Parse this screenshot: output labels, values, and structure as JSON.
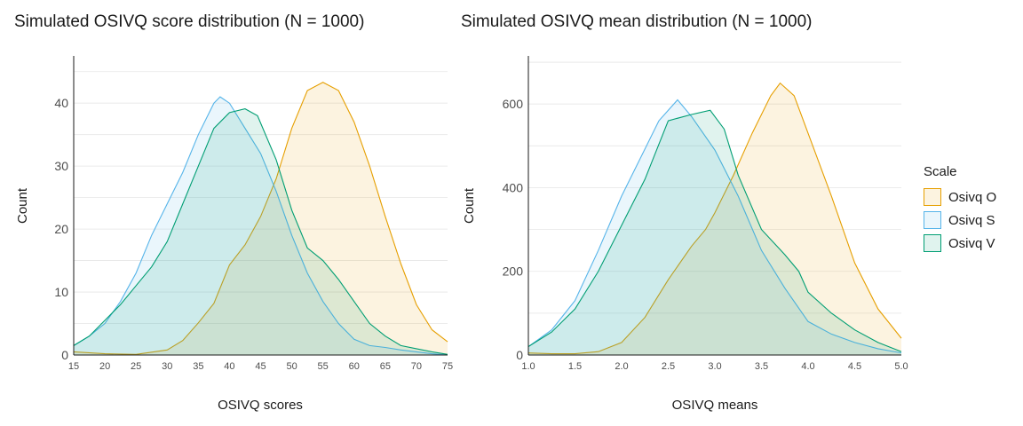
{
  "legend": {
    "title": "Scale",
    "items": [
      {
        "label": "Osivq O",
        "color": "#E69F00"
      },
      {
        "label": "Osivq S",
        "color": "#56B4E9"
      },
      {
        "label": "Osivq V",
        "color": "#009E73"
      }
    ]
  },
  "chart_data": [
    {
      "type": "area",
      "title": "Simulated OSIVQ score distribution (N = 1000)",
      "xlabel": "OSIVQ scores",
      "ylabel": "Count",
      "xlim": [
        15,
        75
      ],
      "ylim": [
        0,
        47.5
      ],
      "xticks": [
        15,
        20,
        25,
        30,
        35,
        40,
        45,
        50,
        55,
        60,
        65,
        70,
        75
      ],
      "yticks": [
        0,
        10,
        20,
        30,
        40
      ],
      "grid": true,
      "legend_position": "right",
      "series": [
        {
          "name": "Osivq O",
          "color": "#E69F00",
          "x": [
            15,
            20,
            25,
            30,
            32.5,
            35,
            37.5,
            40,
            42.5,
            45,
            47.5,
            50,
            52.5,
            55,
            57.5,
            60,
            62.5,
            65,
            67.5,
            70,
            72.5,
            75
          ],
          "y": [
            0.5,
            0.2,
            0.1,
            0.8,
            2.3,
            5.1,
            8.2,
            14.3,
            17.5,
            22.0,
            28.0,
            36.0,
            42.0,
            43.3,
            42.0,
            37.0,
            30.0,
            22.0,
            14.5,
            8.0,
            4.0,
            2.1
          ]
        },
        {
          "name": "Osivq S",
          "color": "#56B4E9",
          "x": [
            15,
            17.5,
            20,
            22.5,
            25,
            27.5,
            30,
            32.5,
            35,
            37.5,
            38.5,
            40,
            42.5,
            45,
            47.5,
            50,
            52.5,
            55,
            57.5,
            60,
            62.5,
            65,
            67.5,
            70,
            72.5,
            75
          ],
          "y": [
            1.5,
            3.0,
            5.0,
            8.5,
            13.0,
            19.0,
            24.0,
            29.0,
            35.0,
            40.0,
            41.0,
            40.0,
            36.0,
            32.0,
            26.0,
            19.0,
            13.0,
            8.5,
            5.0,
            2.5,
            1.5,
            1.2,
            0.8,
            0.5,
            0.2,
            0.0
          ]
        },
        {
          "name": "Osivq V",
          "color": "#009E73",
          "x": [
            15,
            17.5,
            20,
            22.5,
            25,
            27.5,
            30,
            32.5,
            35,
            37.5,
            40,
            42.5,
            44.5,
            47.5,
            50,
            52.5,
            55,
            57.5,
            60,
            62.5,
            65,
            67.5,
            70,
            72.5,
            75
          ],
          "y": [
            1.5,
            3.0,
            5.5,
            8.0,
            11.0,
            14.0,
            18.0,
            24.0,
            30.0,
            36.0,
            38.5,
            39.1,
            38.0,
            31.0,
            23.0,
            17.0,
            15.0,
            12.0,
            8.5,
            5.0,
            3.0,
            1.5,
            1.0,
            0.5,
            0.1
          ]
        }
      ]
    },
    {
      "type": "area",
      "title": "Simulated OSIVQ mean distribution (N = 1000)",
      "xlabel": "OSIVQ means",
      "ylabel": "Count",
      "xlim": [
        1.0,
        5.0
      ],
      "ylim": [
        0,
        715
      ],
      "xticks": [
        "1.0",
        "1.5",
        "2.0",
        "2.5",
        "3.0",
        "3.5",
        "4.0",
        "4.5",
        "5.0"
      ],
      "yticks": [
        0,
        200,
        400,
        600
      ],
      "grid": true,
      "legend_position": "right",
      "series": [
        {
          "name": "Osivq O",
          "color": "#E69F00",
          "x": [
            1.0,
            1.25,
            1.5,
            1.75,
            2.0,
            2.25,
            2.5,
            2.75,
            2.9,
            3.0,
            3.2,
            3.4,
            3.6,
            3.7,
            3.85,
            4.0,
            4.25,
            4.5,
            4.75,
            5.0
          ],
          "y": [
            5,
            3,
            3,
            8,
            30,
            90,
            180,
            260,
            300,
            340,
            430,
            530,
            620,
            650,
            620,
            530,
            380,
            220,
            110,
            40
          ]
        },
        {
          "name": "Osivq S",
          "color": "#56B4E9",
          "x": [
            1.0,
            1.25,
            1.5,
            1.75,
            2.0,
            2.2,
            2.4,
            2.6,
            2.75,
            3.0,
            3.25,
            3.5,
            3.75,
            4.0,
            4.25,
            4.5,
            4.75,
            5.0
          ],
          "y": [
            20,
            60,
            130,
            250,
            380,
            470,
            560,
            610,
            570,
            490,
            380,
            250,
            160,
            80,
            50,
            30,
            15,
            5
          ]
        },
        {
          "name": "Osivq V",
          "color": "#009E73",
          "x": [
            1.0,
            1.25,
            1.5,
            1.75,
            2.0,
            2.25,
            2.5,
            2.75,
            2.95,
            3.1,
            3.25,
            3.5,
            3.75,
            3.9,
            4.0,
            4.25,
            4.5,
            4.75,
            5.0
          ],
          "y": [
            20,
            55,
            110,
            200,
            310,
            420,
            560,
            575,
            585,
            540,
            430,
            300,
            240,
            200,
            150,
            100,
            60,
            30,
            8
          ]
        }
      ]
    }
  ]
}
